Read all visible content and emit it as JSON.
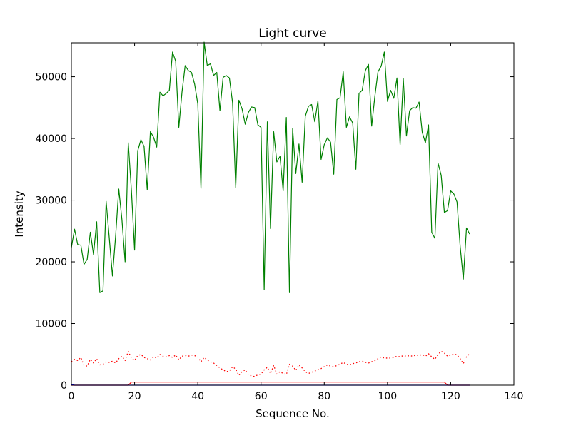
{
  "chart_data": {
    "type": "line",
    "title": "Light curve",
    "xlabel": "Sequence No.",
    "ylabel": "Intensity",
    "xlim": [
      0,
      140
    ],
    "ylim": [
      0,
      55500
    ],
    "xticks": [
      0,
      20,
      40,
      60,
      80,
      100,
      120,
      140
    ],
    "yticks": [
      0,
      10000,
      20000,
      30000,
      40000,
      50000
    ],
    "grid": false,
    "series": [
      {
        "color": "#008000",
        "style": "solid",
        "x": [
          0,
          1,
          2,
          3,
          4,
          5,
          6,
          7,
          8,
          9,
          10,
          11,
          12,
          13,
          14,
          15,
          16,
          17,
          18,
          19,
          20,
          21,
          22,
          23,
          24,
          25,
          26,
          27,
          28,
          29,
          30,
          31,
          32,
          33,
          34,
          35,
          36,
          37,
          38,
          39,
          40,
          41,
          42,
          43,
          44,
          45,
          46,
          47,
          48,
          49,
          50,
          51,
          52,
          53,
          54,
          55,
          56,
          57,
          58,
          59,
          60,
          61,
          62,
          63,
          64,
          65,
          66,
          67,
          68,
          69,
          70,
          71,
          72,
          73,
          74,
          75,
          76,
          77,
          78,
          79,
          80,
          81,
          82,
          83,
          84,
          85,
          86,
          87,
          88,
          89,
          90,
          91,
          92,
          93,
          94,
          95,
          96,
          97,
          98,
          99,
          100,
          101,
          102,
          103,
          104,
          105,
          106,
          107,
          108,
          109,
          110,
          111,
          112,
          113,
          114,
          115,
          116,
          117,
          118,
          119,
          120,
          121,
          122,
          123,
          124,
          125,
          126
        ],
        "y": [
          22300,
          25300,
          22800,
          22700,
          19600,
          20400,
          24800,
          21200,
          26500,
          15000,
          15300,
          29800,
          23800,
          17700,
          24200,
          31800,
          26800,
          20000,
          39300,
          31500,
          21900,
          38000,
          39800,
          38700,
          31700,
          41100,
          40200,
          38600,
          47500,
          46900,
          47300,
          47800,
          54000,
          52500,
          41800,
          47500,
          51800,
          51000,
          50700,
          48800,
          45600,
          31900,
          55600,
          51800,
          52100,
          50200,
          50700,
          44500,
          49900,
          50200,
          49800,
          45800,
          32000,
          46200,
          44800,
          42300,
          44200,
          45100,
          45000,
          42200,
          41800,
          15500,
          42700,
          25400,
          41100,
          36200,
          37100,
          31500,
          43400,
          15000,
          41600,
          34300,
          39100,
          32900,
          43600,
          45200,
          45500,
          42700,
          46100,
          36600,
          39000,
          40100,
          39400,
          34200,
          46300,
          46600,
          50800,
          41800,
          43500,
          42500,
          35000,
          47300,
          47800,
          51000,
          52000,
          42000,
          46800,
          50800,
          51700,
          54000,
          46000,
          47800,
          46500,
          49800,
          39000,
          49700,
          40400,
          44500,
          45000,
          44900,
          45900,
          41000,
          39300,
          42200,
          24800,
          23800,
          36000,
          34000,
          28000,
          28300,
          31500,
          31000,
          29700,
          22500,
          17200,
          25500,
          24500
        ]
      },
      {
        "color": "#ff0000",
        "style": "dotted",
        "x": [
          0,
          1,
          2,
          3,
          4,
          5,
          6,
          7,
          8,
          9,
          10,
          11,
          12,
          13,
          14,
          15,
          16,
          17,
          18,
          19,
          20,
          21,
          22,
          23,
          24,
          25,
          26,
          27,
          28,
          29,
          30,
          31,
          32,
          33,
          34,
          35,
          36,
          37,
          38,
          39,
          40,
          41,
          42,
          43,
          44,
          45,
          46,
          47,
          48,
          49,
          50,
          51,
          52,
          53,
          54,
          55,
          56,
          57,
          58,
          59,
          60,
          61,
          62,
          63,
          64,
          65,
          66,
          67,
          68,
          69,
          70,
          71,
          72,
          73,
          74,
          75,
          76,
          77,
          78,
          79,
          80,
          81,
          82,
          83,
          84,
          85,
          86,
          87,
          88,
          89,
          90,
          91,
          92,
          93,
          94,
          95,
          96,
          97,
          98,
          99,
          100,
          101,
          102,
          103,
          104,
          105,
          106,
          107,
          108,
          109,
          110,
          111,
          112,
          113,
          114,
          115,
          116,
          117,
          118,
          119,
          120,
          121,
          122,
          123,
          124,
          125,
          126
        ],
        "y": [
          3800,
          4200,
          4000,
          4500,
          3200,
          3100,
          4200,
          3600,
          4300,
          3300,
          3400,
          3800,
          3700,
          3900,
          3600,
          4300,
          4700,
          4000,
          5500,
          4400,
          4000,
          4800,
          5000,
          4500,
          4300,
          4100,
          4600,
          4400,
          5000,
          4700,
          4600,
          4800,
          4500,
          4900,
          4100,
          4700,
          4800,
          4700,
          4900,
          4800,
          4600,
          3800,
          4500,
          4100,
          3800,
          3600,
          3200,
          2800,
          2500,
          2200,
          2300,
          3000,
          2600,
          1600,
          2200,
          2500,
          1700,
          1500,
          1400,
          1700,
          1800,
          2500,
          2900,
          1900,
          3200,
          1800,
          2200,
          1900,
          1700,
          3400,
          3100,
          2400,
          3300,
          2800,
          2200,
          1900,
          2100,
          2300,
          2500,
          2700,
          3000,
          3300,
          3100,
          3000,
          3200,
          3400,
          3700,
          3400,
          3300,
          3500,
          3600,
          3800,
          3900,
          3700,
          3600,
          3800,
          4000,
          4300,
          4600,
          4400,
          4400,
          4400,
          4500,
          4700,
          4600,
          4800,
          4700,
          4800,
          4700,
          4900,
          4800,
          5000,
          4700,
          5100,
          4600,
          4200,
          5000,
          5500,
          5200,
          4700,
          4900,
          5100,
          4900,
          4300,
          3500,
          4600,
          5100
        ]
      },
      {
        "color": "#ff0000",
        "style": "solid",
        "x": [
          0,
          18,
          19,
          118,
          119,
          126
        ],
        "y": [
          0,
          0,
          500,
          500,
          0,
          0
        ]
      },
      {
        "color": "#0000ff",
        "style": "solid",
        "x": [
          0,
          1,
          126
        ],
        "y": [
          150,
          0,
          0
        ]
      }
    ]
  }
}
